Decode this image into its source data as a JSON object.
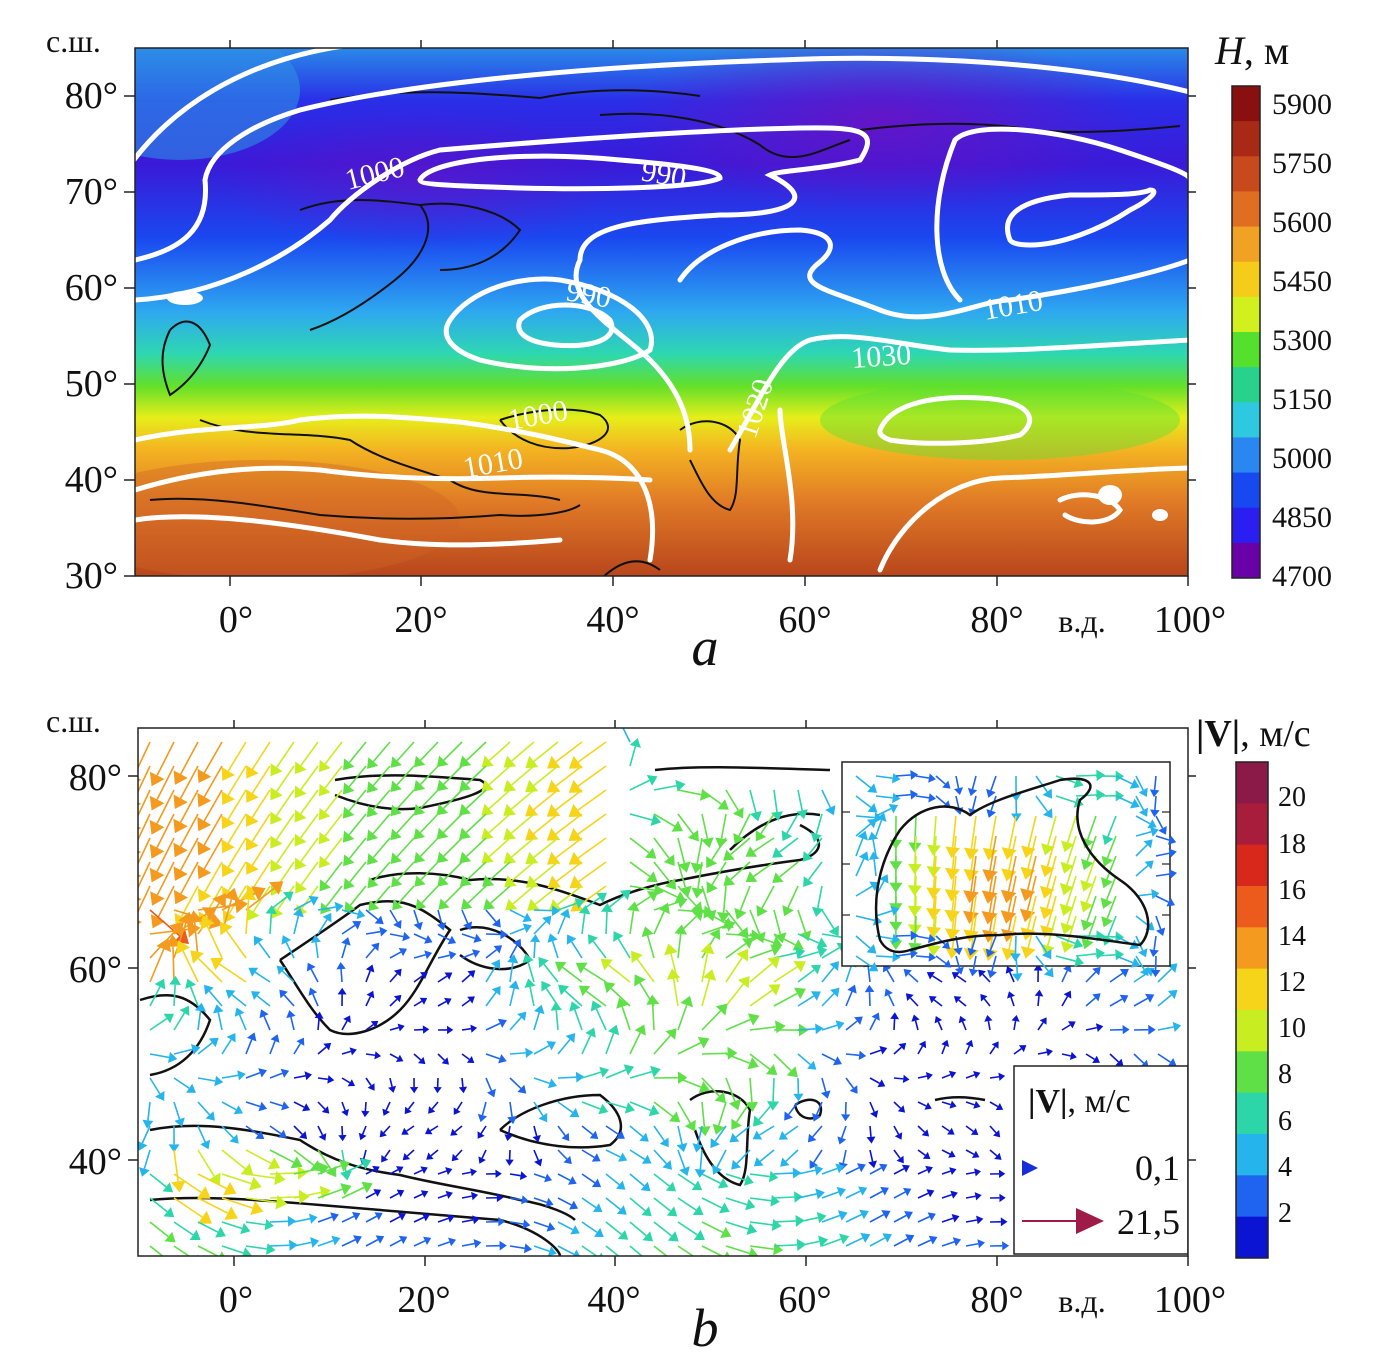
{
  "panel_a": {
    "letter": "a",
    "lat_unit": "с.ш.",
    "lon_unit": "в.д.",
    "lat_ticks": [
      "80°",
      "70°",
      "60°",
      "50°",
      "40°",
      "30°"
    ],
    "lon_ticks": [
      "0°",
      "20°",
      "40°",
      "60°",
      "80°",
      "100°"
    ],
    "colorbar": {
      "title_var": "H",
      "title_unit": ", м",
      "labels": [
        "5900",
        "5750",
        "5600",
        "5450",
        "5300",
        "5150",
        "5000",
        "4850",
        "4700"
      ],
      "colors": [
        "#6a00a8",
        "#2a1ef0",
        "#1848f0",
        "#2a86f0",
        "#2ec8e0",
        "#28d28c",
        "#54e02c",
        "#d2f01e",
        "#f6cc1a",
        "#f0a224",
        "#e06e22",
        "#c84a1c",
        "#a82a16",
        "#8a1010"
      ]
    },
    "isobar_labels": [
      "1000",
      "990",
      "990",
      "1010",
      "1030",
      "1020",
      "1000",
      "1010"
    ]
  },
  "panel_b": {
    "letter": "b",
    "lat_unit": "с.ш.",
    "lon_unit": "в.д.",
    "lat_ticks": [
      "80°",
      "60°",
      "40°"
    ],
    "lon_ticks": [
      "0°",
      "20°",
      "40°",
      "60°",
      "80°",
      "100°"
    ],
    "colorbar": {
      "title_var": "|V|",
      "title_unit": ", м/с",
      "labels": [
        "20",
        "18",
        "16",
        "14",
        "12",
        "10",
        "8",
        "6",
        "4",
        "2"
      ],
      "colors": [
        "#0a14d2",
        "#1e64f0",
        "#26b4ec",
        "#2cd6a8",
        "#5ee046",
        "#c8ee22",
        "#f6d41a",
        "#f49a1e",
        "#ec5a1c",
        "#d8281c",
        "#a81c3c",
        "#8c1a48"
      ]
    },
    "legend": {
      "title_var": "|V|",
      "title_unit": ", м/с",
      "min_label": "0,1",
      "max_label": "21,5"
    }
  },
  "colors": {
    "isobar": "#ffffff",
    "coast": "#111111",
    "axis": "#222222"
  }
}
